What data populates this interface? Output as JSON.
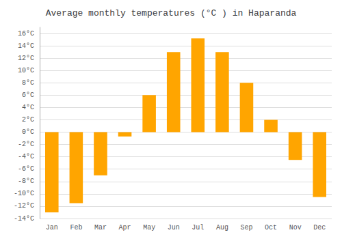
{
  "chart_data": {
    "type": "bar",
    "title": "Average monthly temperatures (°C ) in Haparanda",
    "categories": [
      "Jan",
      "Feb",
      "Mar",
      "Apr",
      "May",
      "Jun",
      "Jul",
      "Aug",
      "Sep",
      "Oct",
      "Nov",
      "Dec"
    ],
    "values": [
      -13,
      -11.5,
      -7,
      -0.7,
      6,
      13,
      15.2,
      13,
      8,
      2,
      -4.5,
      -10.5
    ],
    "color": "#FFA500",
    "ylim": [
      -14,
      17
    ],
    "yticks": [
      {
        "value": -14,
        "label": "-14°C"
      },
      {
        "value": -12,
        "label": "-12°C"
      },
      {
        "value": -10,
        "label": "-10°C"
      },
      {
        "value": -8,
        "label": "-8°C"
      },
      {
        "value": -6,
        "label": "-6°C"
      },
      {
        "value": -4,
        "label": "-4°C"
      },
      {
        "value": -2,
        "label": "-2°C"
      },
      {
        "value": 0,
        "label": "0°C"
      },
      {
        "value": 2,
        "label": "2°C"
      },
      {
        "value": 4,
        "label": "4°C"
      },
      {
        "value": 6,
        "label": "6°C"
      },
      {
        "value": 8,
        "label": "8°C"
      },
      {
        "value": 10,
        "label": "10°C"
      },
      {
        "value": 12,
        "label": "12°C"
      },
      {
        "value": 14,
        "label": "14°C"
      },
      {
        "value": 16,
        "label": "16°C"
      }
    ],
    "grid": true
  }
}
